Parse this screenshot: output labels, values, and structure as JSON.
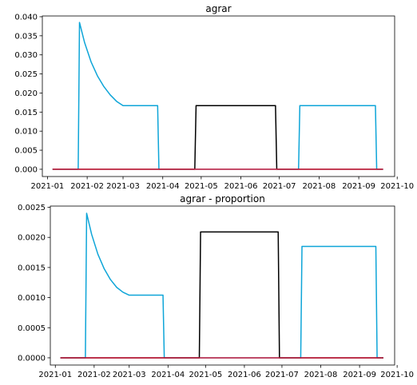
{
  "chart_data": [
    {
      "type": "line",
      "title": "agrar",
      "xlabel": "",
      "ylabel": "",
      "xlim": [
        "2020-12-28",
        "2021-09-29"
      ],
      "ylim": [
        -0.0019,
        0.0402
      ],
      "x_ticks": [
        "2021-01",
        "2021-02",
        "2021-03",
        "2021-04",
        "2021-05",
        "2021-06",
        "2021-07",
        "2021-08",
        "2021-09",
        "2021-10"
      ],
      "y_ticks": [
        "0.000",
        "0.005",
        "0.010",
        "0.015",
        "0.020",
        "0.025",
        "0.030",
        "0.035",
        "0.040"
      ],
      "grid": false,
      "series": [
        {
          "color": "#0ea5d8",
          "points": [
            [
              "2021-01-05",
              0
            ],
            [
              "2021-01-25",
              0
            ],
            [
              "2021-01-26",
              0.0385
            ],
            [
              "2021-01-30",
              0.0332
            ],
            [
              "2021-02-04",
              0.0282
            ],
            [
              "2021-02-09",
              0.0245
            ],
            [
              "2021-02-14",
              0.0217
            ],
            [
              "2021-02-19",
              0.0195
            ],
            [
              "2021-02-24",
              0.0178
            ],
            [
              "2021-03-01",
              0.0167
            ],
            [
              "2021-03-28",
              0.0167
            ],
            [
              "2021-03-29",
              0
            ],
            [
              "2021-07-16",
              0
            ],
            [
              "2021-07-17",
              0.0167
            ],
            [
              "2021-09-14",
              0.0167
            ],
            [
              "2021-09-15",
              0
            ],
            [
              "2021-09-20",
              0
            ]
          ]
        },
        {
          "color": "#000000",
          "points": [
            [
              "2021-01-05",
              0
            ],
            [
              "2021-04-26",
              0
            ],
            [
              "2021-04-27",
              0.0167
            ],
            [
              "2021-06-28",
              0.0167
            ],
            [
              "2021-06-29",
              0
            ],
            [
              "2021-09-20",
              0
            ]
          ]
        },
        {
          "color": "#d01c3c",
          "points": [
            [
              "2021-01-05",
              0
            ],
            [
              "2021-09-20",
              0
            ]
          ]
        }
      ]
    },
    {
      "type": "line",
      "title": "agrar - proportion",
      "xlabel": "",
      "ylabel": "",
      "xlim": [
        "2020-12-28",
        "2021-09-29"
      ],
      "ylim": [
        -0.00012,
        0.00252
      ],
      "x_ticks": [
        "2021-01",
        "2021-02",
        "2021-03",
        "2021-04",
        "2021-05",
        "2021-06",
        "2021-07",
        "2021-08",
        "2021-09",
        "2021-10"
      ],
      "y_ticks": [
        "0.0000",
        "0.0005",
        "0.0010",
        "0.0015",
        "0.0020",
        "0.0025"
      ],
      "grid": false,
      "series": [
        {
          "color": "#0ea5d8",
          "points": [
            [
              "2021-01-05",
              0
            ],
            [
              "2021-01-25",
              0
            ],
            [
              "2021-01-26",
              0.0024
            ],
            [
              "2021-01-30",
              0.00205
            ],
            [
              "2021-02-04",
              0.00172
            ],
            [
              "2021-02-09",
              0.00148
            ],
            [
              "2021-02-14",
              0.0013
            ],
            [
              "2021-02-19",
              0.00117
            ],
            [
              "2021-02-24",
              0.00109
            ],
            [
              "2021-03-01",
              0.00104
            ],
            [
              "2021-03-28",
              0.00104
            ],
            [
              "2021-03-29",
              0
            ],
            [
              "2021-07-16",
              0
            ],
            [
              "2021-07-17",
              0.00185
            ],
            [
              "2021-09-14",
              0.00185
            ],
            [
              "2021-09-15",
              0
            ],
            [
              "2021-09-20",
              0
            ]
          ]
        },
        {
          "color": "#000000",
          "points": [
            [
              "2021-01-05",
              0
            ],
            [
              "2021-04-26",
              0
            ],
            [
              "2021-04-27",
              0.00209
            ],
            [
              "2021-06-28",
              0.00209
            ],
            [
              "2021-06-29",
              0
            ],
            [
              "2021-09-20",
              0
            ]
          ]
        },
        {
          "color": "#d01c3c",
          "points": [
            [
              "2021-01-05",
              0
            ],
            [
              "2021-09-20",
              0
            ]
          ]
        }
      ]
    }
  ]
}
